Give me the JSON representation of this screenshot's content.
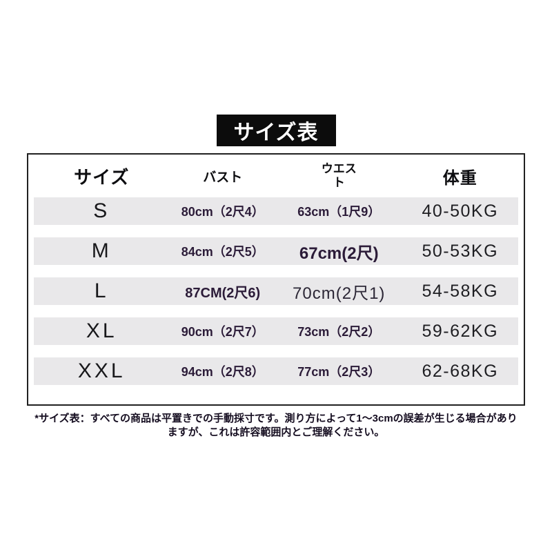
{
  "colors": {
    "banner_bg": "#0c0c0c",
    "banner_text": "#ffffff",
    "table_border": "#202020",
    "row_bg": "#e9e8ea",
    "measurement_text": "#2b1b38",
    "weight_text": "#1e1e22"
  },
  "banner": {
    "title": "サイズ表"
  },
  "table": {
    "headers": [
      "サイズ",
      "バスト",
      "ウエスト",
      "体重"
    ],
    "rows": [
      {
        "size": "S",
        "bust": "80cm（2尺4）",
        "waist": "63cm（1尺9）",
        "weight": "40-50KG"
      },
      {
        "size": "M",
        "bust": "84cm（2尺5）",
        "waist": "67cm(2尺)",
        "weight": "50-53KG"
      },
      {
        "size": "L",
        "bust": "87CM(2尺6)",
        "waist": "70cm(2尺1)",
        "weight": "54-58KG"
      },
      {
        "size": "XL",
        "bust": "90cm（2尺7）",
        "waist": "73cm（2尺2）",
        "weight": "59-62KG"
      },
      {
        "size": "XXL",
        "bust": "94cm（2尺8）",
        "waist": "77cm（2尺3）",
        "weight": "62-68KG"
      }
    ]
  },
  "footnote": {
    "line1": "*サイズ表：すべての商品は平置きでの手動採寸です。測り方によって1～3cmの誤差が生じる場合があり",
    "line2": "ますが、これは許容範囲内とご理解ください。"
  }
}
